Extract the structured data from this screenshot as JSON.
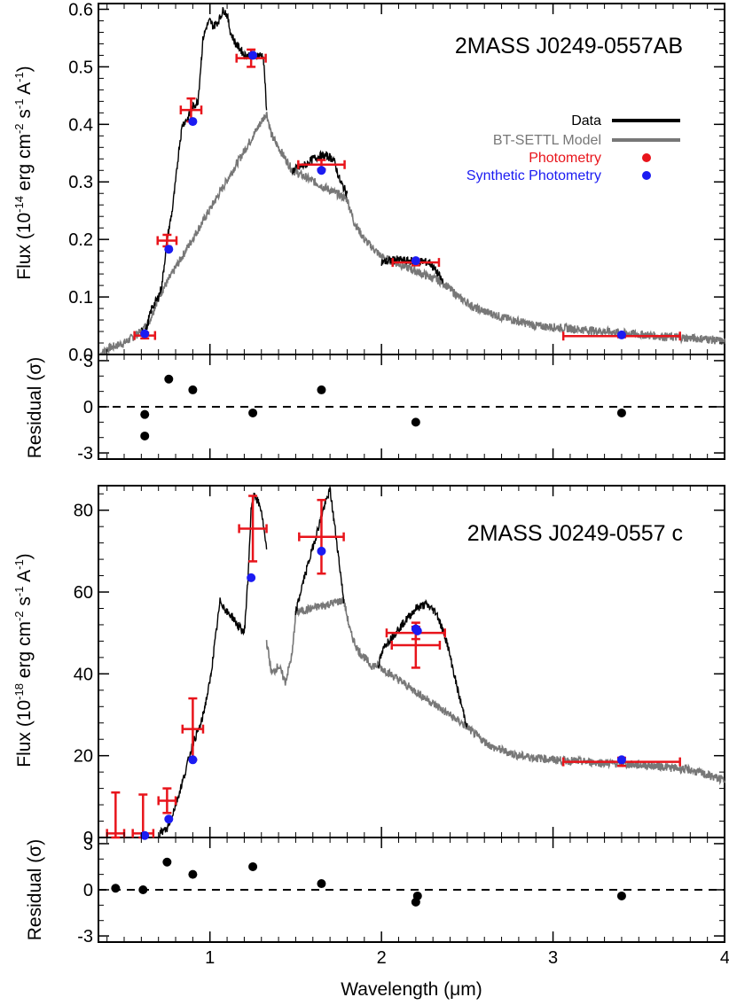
{
  "colors": {
    "data": "#000000",
    "model": "#777777",
    "photometry": "#e8141b",
    "synthetic": "#1b1bf2",
    "residual": "#000000"
  },
  "legend": {
    "data": "Data",
    "model": "BT-SETTL Model",
    "photometry": "Photometry",
    "synthetic": "Synthetic Photometry"
  },
  "chart_data": [
    {
      "type": "line",
      "title": "2MASS J0249-0557AB",
      "ylabel": "Flux (10^-14 erg cm^-2 s^-1 A^-1)",
      "xlabel": "",
      "xlim": [
        0.35,
        4.0
      ],
      "ylim": [
        0.0,
        0.61
      ],
      "xticks": [
        1,
        2,
        3,
        4
      ],
      "yticks": [
        0.0,
        0.1,
        0.2,
        0.3,
        0.4,
        0.5,
        0.6
      ],
      "ytick_labels": [
        "0.0",
        "0.1",
        "0.2",
        "0.3",
        "0.4",
        "0.5",
        "0.6"
      ],
      "data_spectrum": {
        "x": [
          0.6,
          0.63,
          0.66,
          0.68,
          0.7,
          0.72,
          0.75,
          0.78,
          0.8,
          0.82,
          0.84,
          0.87,
          0.9,
          0.93,
          0.96,
          0.98,
          1.0,
          1.02,
          1.05,
          1.08,
          1.1,
          1.12,
          1.15,
          1.18,
          1.2,
          1.22,
          1.25,
          1.28,
          1.31,
          1.32,
          1.33
        ],
        "y": [
          0.04,
          0.045,
          0.08,
          0.09,
          0.1,
          0.12,
          0.2,
          0.25,
          0.3,
          0.36,
          0.4,
          0.41,
          0.43,
          0.44,
          0.55,
          0.57,
          0.58,
          0.57,
          0.58,
          0.6,
          0.59,
          0.56,
          0.54,
          0.53,
          0.52,
          0.52,
          0.52,
          0.52,
          0.52,
          0.48,
          0.42
        ]
      },
      "data_spectrum_2": {
        "x": [
          1.48,
          1.52,
          1.56,
          1.6,
          1.64,
          1.68,
          1.72,
          1.76,
          1.8
        ],
        "y": [
          0.32,
          0.325,
          0.33,
          0.34,
          0.345,
          0.345,
          0.34,
          0.3,
          0.28
        ]
      },
      "data_spectrum_3": {
        "x": [
          2.0,
          2.08,
          2.15,
          2.22,
          2.28,
          2.33,
          2.36
        ],
        "y": [
          0.16,
          0.165,
          0.163,
          0.162,
          0.16,
          0.14,
          0.125
        ]
      },
      "model_spectrum": {
        "x": [
          0.36,
          0.4,
          0.45,
          0.5,
          0.55,
          0.6,
          0.65,
          0.7,
          1.33,
          1.36,
          1.4,
          1.44,
          1.48,
          1.8,
          1.84,
          1.9,
          1.95,
          2.0,
          2.36,
          2.45,
          2.55,
          2.7,
          2.9,
          3.1,
          3.3,
          3.5,
          3.7,
          3.9,
          4.0
        ],
        "y": [
          0.0,
          0.01,
          0.015,
          0.02,
          0.03,
          0.04,
          0.06,
          0.1,
          0.42,
          0.38,
          0.36,
          0.34,
          0.32,
          0.27,
          0.23,
          0.2,
          0.185,
          0.17,
          0.125,
          0.1,
          0.08,
          0.065,
          0.05,
          0.045,
          0.04,
          0.035,
          0.03,
          0.027,
          0.022
        ]
      },
      "photometry": [
        {
          "x": 0.62,
          "y": 0.033,
          "xerr": 0.06,
          "yerr": 0.005
        },
        {
          "x": 0.75,
          "y": 0.198,
          "xerr": 0.055,
          "yerr": 0.01
        },
        {
          "x": 0.89,
          "y": 0.425,
          "xerr": 0.06,
          "yerr": 0.02
        },
        {
          "x": 1.24,
          "y": 0.515,
          "xerr": 0.085,
          "yerr": 0.015
        },
        {
          "x": 1.65,
          "y": 0.33,
          "xerr": 0.135,
          "yerr": 0.008
        },
        {
          "x": 2.2,
          "y": 0.16,
          "xerr": 0.135,
          "yerr": 0.005
        },
        {
          "x": 3.4,
          "y": 0.032,
          "xerr": 0.34,
          "yerr": 0.002
        }
      ],
      "synthetic": [
        {
          "x": 0.62,
          "y": 0.036
        },
        {
          "x": 0.76,
          "y": 0.183
        },
        {
          "x": 0.9,
          "y": 0.405
        },
        {
          "x": 1.25,
          "y": 0.52
        },
        {
          "x": 1.65,
          "y": 0.32
        },
        {
          "x": 2.2,
          "y": 0.163
        },
        {
          "x": 3.4,
          "y": 0.034
        }
      ],
      "residuals": {
        "ylabel": "Residual (σ)",
        "ylim": [
          -3.4,
          3.4
        ],
        "yticks": [
          -3,
          0,
          3
        ],
        "ytick_labels": [
          "-3",
          "0",
          "3"
        ],
        "x": [
          0.62,
          0.62,
          0.76,
          0.9,
          1.25,
          1.65,
          2.2,
          3.4
        ],
        "y": [
          -0.5,
          -1.9,
          1.8,
          1.1,
          -0.4,
          1.1,
          -1.0,
          -0.4
        ]
      }
    },
    {
      "type": "line",
      "title": "2MASS J0249-0557 c",
      "ylabel": "Flux (10^-18 erg cm^-2 s^-1 A^-1)",
      "xlabel": "Wavelength (μm)",
      "xlim": [
        0.35,
        4.0
      ],
      "ylim": [
        0,
        86
      ],
      "xticks": [
        1,
        2,
        3,
        4
      ],
      "yticks": [
        0,
        20,
        40,
        60,
        80
      ],
      "ytick_labels": [
        "0",
        "20",
        "40",
        "60",
        "80"
      ],
      "data_spectrum": {
        "x": [
          0.7,
          0.75,
          0.8,
          0.85,
          0.9,
          0.95,
          1.0,
          1.03,
          1.06,
          1.1,
          1.13,
          1.16,
          1.2,
          1.22,
          1.24,
          1.26,
          1.28,
          1.3,
          1.33
        ],
        "y": [
          1,
          2,
          8,
          15,
          23,
          28,
          38,
          48,
          58,
          55,
          54,
          52,
          50,
          62,
          80,
          84,
          82,
          80,
          70
        ]
      },
      "data_spectrum_2": {
        "x": [
          1.5,
          1.54,
          1.58,
          1.62,
          1.66,
          1.7,
          1.74,
          1.78
        ],
        "y": [
          55,
          62,
          68,
          74,
          80,
          85,
          72,
          58
        ]
      },
      "data_spectrum_3": {
        "x": [
          1.98,
          2.02,
          2.08,
          2.14,
          2.2,
          2.26,
          2.32,
          2.38,
          2.45,
          2.5
        ],
        "y": [
          42,
          47,
          50,
          53,
          56,
          57,
          55,
          48,
          35,
          27
        ]
      },
      "model_spectrum": {
        "x": [
          1.33,
          1.36,
          1.4,
          1.44,
          1.48,
          1.5,
          1.78,
          1.82,
          1.86,
          1.9,
          1.94,
          1.98,
          2.5,
          2.55,
          2.65,
          2.8,
          3.0,
          3.2,
          3.4,
          3.6,
          3.8,
          4.0
        ],
        "y": [
          48,
          40,
          42,
          38,
          45,
          55,
          58,
          50,
          46,
          44,
          42,
          42,
          27,
          25,
          22,
          20,
          19,
          18.5,
          18,
          17.5,
          16.5,
          14
        ]
      },
      "photometry": [
        {
          "x": 0.45,
          "y": 1.0,
          "xerr": 0.05,
          "yerr": 10
        },
        {
          "x": 0.61,
          "y": 1.0,
          "xerr": 0.06,
          "yerr": 9.5
        },
        {
          "x": 0.75,
          "y": 9.0,
          "xerr": 0.05,
          "yerr": 3
        },
        {
          "x": 0.9,
          "y": 26.5,
          "xerr": 0.06,
          "yerr": 7.5
        },
        {
          "x": 1.25,
          "y": 75.5,
          "xerr": 0.08,
          "yerr": 8
        },
        {
          "x": 1.65,
          "y": 73.5,
          "xerr": 0.13,
          "yerr": 9
        },
        {
          "x": 2.2,
          "y": 50,
          "xerr": 0.17,
          "yerr": 1.5
        },
        {
          "x": 2.2,
          "y": 47,
          "xerr": 0.14,
          "yerr": 5.5
        },
        {
          "x": 3.4,
          "y": 18.5,
          "xerr": 0.34,
          "yerr": 1
        }
      ],
      "synthetic": [
        {
          "x": 0.62,
          "y": 0.5
        },
        {
          "x": 0.76,
          "y": 4.5
        },
        {
          "x": 0.9,
          "y": 19
        },
        {
          "x": 1.24,
          "y": 63.5
        },
        {
          "x": 1.65,
          "y": 70
        },
        {
          "x": 2.2,
          "y": 51
        },
        {
          "x": 2.21,
          "y": 50.5
        },
        {
          "x": 3.4,
          "y": 19
        }
      ],
      "residuals": {
        "ylabel": "Residual (σ)",
        "ylim": [
          -3.4,
          3.4
        ],
        "yticks": [
          -3,
          0,
          3
        ],
        "ytick_labels": [
          "-3",
          "0",
          "3"
        ],
        "x": [
          0.45,
          0.61,
          0.75,
          0.9,
          1.25,
          1.65,
          2.2,
          2.21,
          3.4
        ],
        "y": [
          0.1,
          0.0,
          1.8,
          1.0,
          1.5,
          0.4,
          -0.8,
          -0.4,
          -0.4
        ]
      }
    }
  ]
}
